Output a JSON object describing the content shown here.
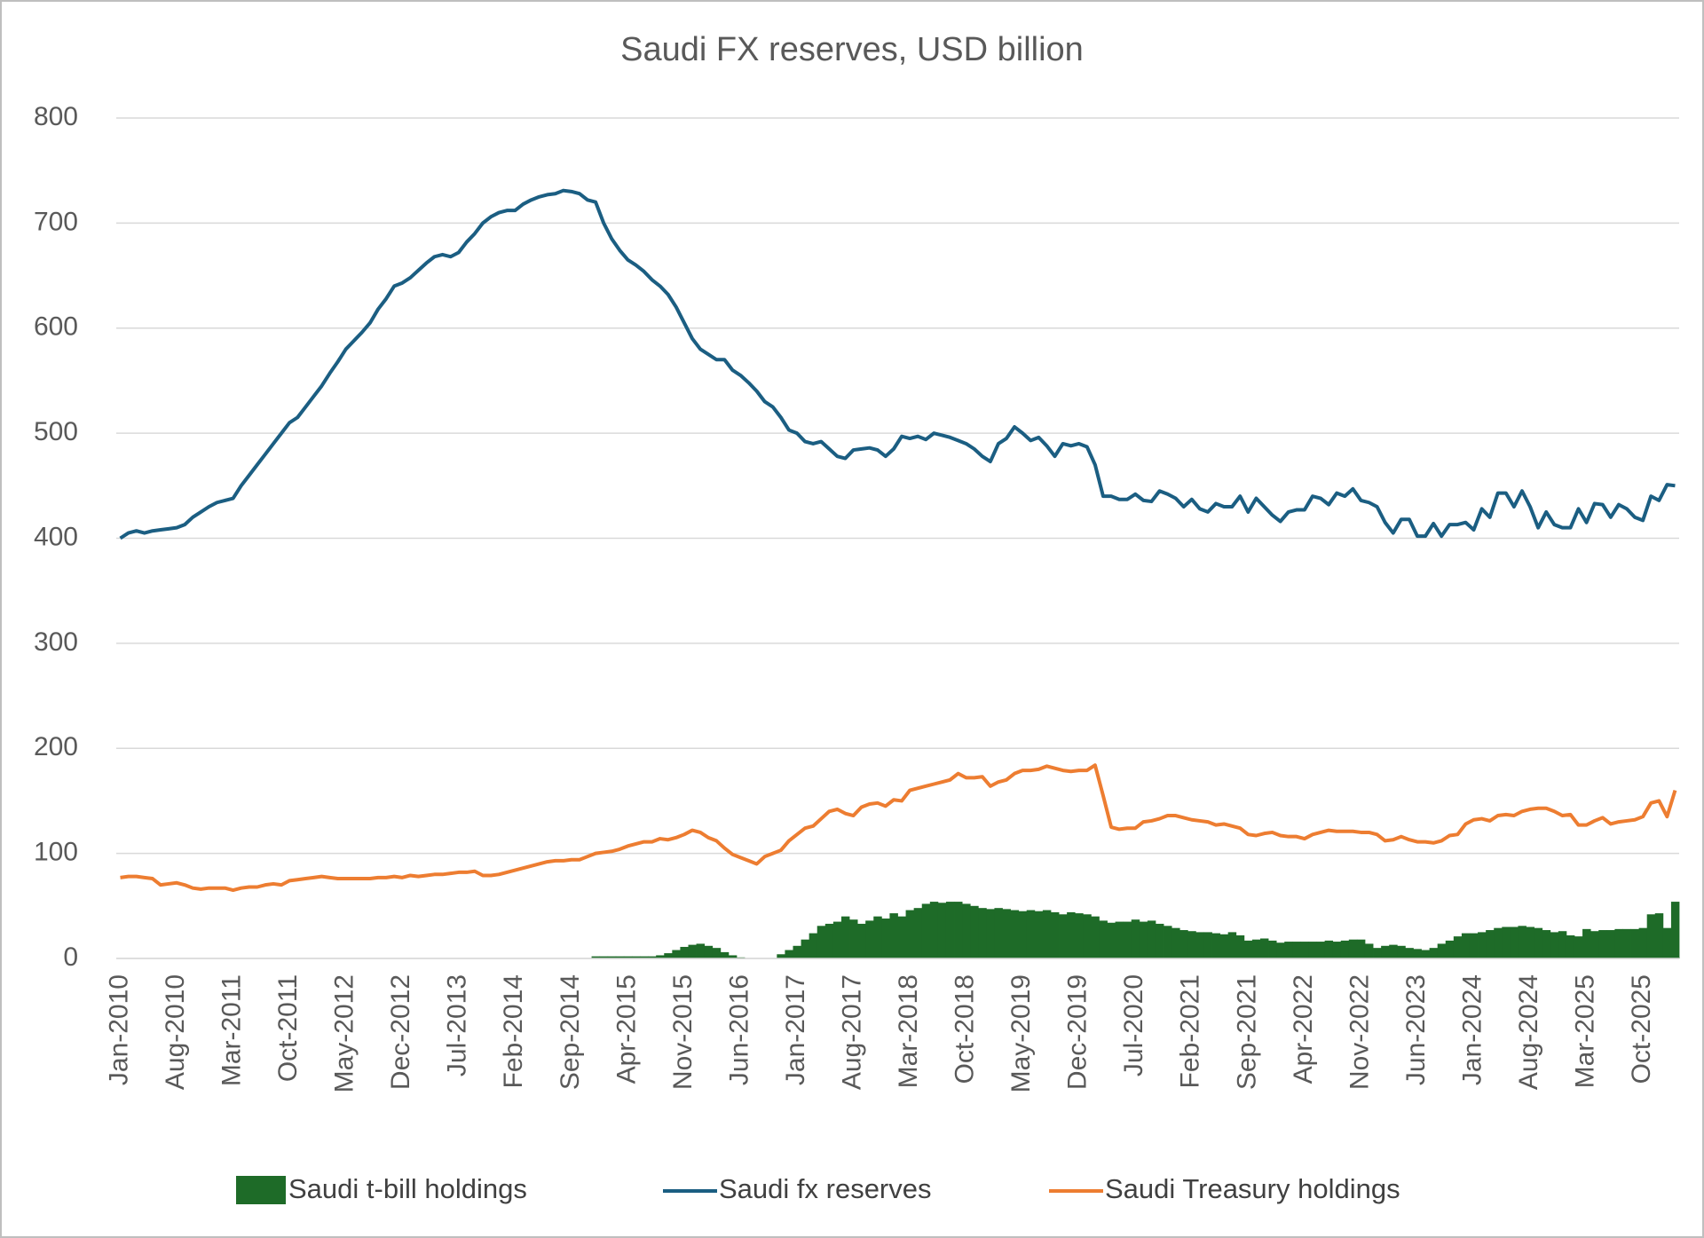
{
  "chart_data": {
    "type": "line",
    "title": "Saudi FX reserves, USD billion",
    "categories": [
      "Jan-2010",
      null,
      null,
      null,
      null,
      null,
      null,
      "Aug-2010",
      null,
      null,
      null,
      null,
      null,
      null,
      "Mar-2011",
      null,
      null,
      null,
      null,
      null,
      null,
      "Oct-2011",
      null,
      null,
      null,
      null,
      null,
      null,
      "May-2012",
      null,
      null,
      null,
      null,
      null,
      null,
      "Dec-2012",
      null,
      null,
      null,
      null,
      null,
      null,
      "Jul-2013",
      null,
      null,
      null,
      null,
      null,
      null,
      "Feb-2014",
      null,
      null,
      null,
      null,
      null,
      null,
      "Sep-2014",
      null,
      null,
      null,
      null,
      null,
      null,
      "Apr-2015",
      null,
      null,
      null,
      null,
      null,
      null,
      "Nov-2015",
      null,
      null,
      null,
      null,
      null,
      null,
      "Jun-2016",
      null,
      null,
      null,
      null,
      null,
      null,
      "Jan-2017",
      null,
      null,
      null,
      null,
      null,
      null,
      "Aug-2017",
      null,
      null,
      null,
      null,
      null,
      null,
      "Mar-2018",
      null,
      null,
      null,
      null,
      null,
      null,
      "Oct-2018",
      null,
      null,
      null,
      null,
      null,
      null,
      "May-2019",
      null,
      null,
      null,
      null,
      null,
      null,
      "Dec-2019",
      null,
      null,
      null,
      null,
      null,
      null,
      "Jul-2020",
      null,
      null,
      null,
      null,
      null,
      null,
      "Feb-2021",
      null,
      null,
      null,
      null,
      null,
      null,
      "Sep-2021",
      null,
      null,
      null,
      null,
      null,
      null,
      "Apr-2022",
      null,
      null,
      null,
      null,
      null,
      null,
      "Nov-2022",
      null,
      null,
      null,
      null,
      null,
      null,
      "Jun-2023",
      null,
      null,
      null,
      null,
      null,
      null,
      "Jan-2024",
      null,
      null,
      null,
      null,
      null,
      null,
      "Aug-2024",
      null,
      null,
      null,
      null,
      null,
      null,
      "Mar-2025",
      null,
      null,
      null,
      null,
      null,
      null,
      "Oct-2025",
      null,
      null,
      null,
      null
    ],
    "series": [
      {
        "name": "Saudi t-bill holdings",
        "type": "bar",
        "color": "#1e6b28",
        "values": [
          0,
          0,
          0,
          0,
          0,
          0,
          0,
          0,
          0,
          0,
          0,
          0,
          0,
          0,
          0,
          0,
          0,
          0,
          0,
          0,
          0,
          0,
          0,
          0,
          0,
          0,
          0,
          0,
          0,
          0,
          0,
          0,
          0,
          0,
          0,
          0,
          0,
          0,
          0,
          0,
          0,
          0,
          0,
          0,
          0,
          0,
          0,
          0,
          0,
          0,
          0,
          0,
          0,
          0,
          0,
          0,
          0,
          0,
          0,
          2,
          2,
          2,
          2,
          2,
          2,
          2,
          2,
          3,
          5,
          8,
          11,
          13,
          14,
          12,
          10,
          6,
          3,
          1,
          0,
          0,
          0,
          0,
          4,
          8,
          12,
          18,
          24,
          31,
          33,
          35,
          40,
          37,
          33,
          36,
          40,
          38,
          43,
          40,
          46,
          48,
          52,
          54,
          53,
          54,
          54,
          52,
          50,
          48,
          47,
          48,
          47,
          46,
          45,
          46,
          45,
          46,
          44,
          42,
          44,
          43,
          42,
          40,
          36,
          34,
          35,
          35,
          37,
          35,
          36,
          33,
          31,
          29,
          27,
          26,
          25,
          25,
          24,
          23,
          25,
          22,
          17,
          18,
          19,
          17,
          15,
          16,
          16,
          16,
          16,
          16,
          17,
          16,
          17,
          18,
          18,
          14,
          10,
          12,
          13,
          12,
          10,
          9,
          8,
          10,
          14,
          17,
          21,
          24,
          24,
          25,
          27,
          29,
          30,
          30,
          31,
          30,
          29,
          27,
          25,
          26,
          22,
          21,
          28,
          26,
          27,
          27,
          28,
          28,
          28,
          29,
          42,
          43,
          29,
          54
        ]
      },
      {
        "name": "Saudi fx reserves",
        "type": "line",
        "color": "#1b5e82",
        "values": [
          400,
          405,
          407,
          405,
          407,
          408,
          409,
          410,
          413,
          420,
          425,
          430,
          434,
          436,
          438,
          450,
          460,
          470,
          480,
          490,
          500,
          510,
          515,
          525,
          535,
          545,
          557,
          568,
          580,
          588,
          596,
          605,
          618,
          628,
          640,
          643,
          648,
          655,
          662,
          668,
          670,
          668,
          672,
          682,
          690,
          700,
          706,
          710,
          712,
          712,
          718,
          722,
          725,
          727,
          728,
          731,
          730,
          728,
          722,
          720,
          700,
          685,
          674,
          665,
          660,
          654,
          646,
          640,
          632,
          620,
          605,
          590,
          580,
          575,
          570,
          570,
          560,
          555,
          548,
          540,
          530,
          525,
          515,
          503,
          500,
          492,
          490,
          492,
          485,
          478,
          476,
          484,
          485,
          486,
          484,
          478,
          485,
          497,
          495,
          497,
          494,
          500,
          498,
          496,
          493,
          490,
          485,
          478,
          473,
          490,
          495,
          506,
          500,
          493,
          496,
          488,
          478,
          490,
          488,
          490,
          487,
          470,
          440,
          440,
          437,
          437,
          442,
          436,
          435,
          445,
          442,
          438,
          430,
          437,
          428,
          425,
          433,
          430,
          430,
          440,
          425,
          438,
          430,
          422,
          416,
          425,
          427,
          427,
          440,
          438,
          432,
          443,
          440,
          447,
          436,
          434,
          430,
          415,
          405,
          418,
          418,
          402,
          402,
          414,
          402,
          413,
          413,
          415,
          408,
          428,
          420,
          443,
          443,
          430,
          445,
          430,
          410,
          425,
          413,
          410,
          410,
          428,
          415,
          433,
          432,
          420,
          432,
          428,
          420,
          417,
          440,
          436,
          451,
          450
        ]
      },
      {
        "name": "Saudi Treasury holdings",
        "type": "line",
        "color": "#ed7d31",
        "values": [
          77,
          78,
          78,
          77,
          76,
          70,
          71,
          72,
          70,
          67,
          66,
          67,
          67,
          67,
          65,
          67,
          68,
          68,
          70,
          71,
          70,
          74,
          75,
          76,
          77,
          78,
          77,
          76,
          76,
          76,
          76,
          76,
          77,
          77,
          78,
          77,
          79,
          78,
          79,
          80,
          80,
          81,
          82,
          82,
          83,
          79,
          79,
          80,
          82,
          84,
          86,
          88,
          90,
          92,
          93,
          93,
          94,
          94,
          97,
          100,
          101,
          102,
          104,
          107,
          109,
          111,
          111,
          114,
          113,
          115,
          118,
          122,
          120,
          115,
          112,
          105,
          99,
          96,
          93,
          90,
          97,
          100,
          103,
          112,
          118,
          124,
          126,
          133,
          140,
          142,
          138,
          136,
          144,
          147,
          148,
          145,
          151,
          150,
          160,
          162,
          164,
          166,
          168,
          170,
          176,
          172,
          172,
          173,
          164,
          168,
          170,
          176,
          179,
          179,
          180,
          183,
          181,
          179,
          178,
          179,
          179,
          184,
          155,
          125,
          123,
          124,
          124,
          130,
          131,
          133,
          136,
          136,
          134,
          132,
          131,
          130,
          127,
          128,
          126,
          124,
          118,
          117,
          119,
          120,
          117,
          116,
          116,
          114,
          118,
          120,
          122,
          121,
          121,
          121,
          120,
          120,
          118,
          112,
          113,
          116,
          113,
          111,
          111,
          110,
          112,
          117,
          118,
          128,
          132,
          133,
          131,
          136,
          137,
          136,
          140,
          142,
          143,
          143,
          140,
          136,
          137,
          127,
          127,
          131,
          134,
          128,
          130,
          131,
          132,
          135,
          148,
          150,
          135,
          160
        ]
      }
    ],
    "ylim": [
      0,
      800
    ],
    "yticks": [
      0,
      100,
      200,
      300,
      400,
      500,
      600,
      700,
      800
    ],
    "grid": true,
    "legend": "bottom"
  }
}
